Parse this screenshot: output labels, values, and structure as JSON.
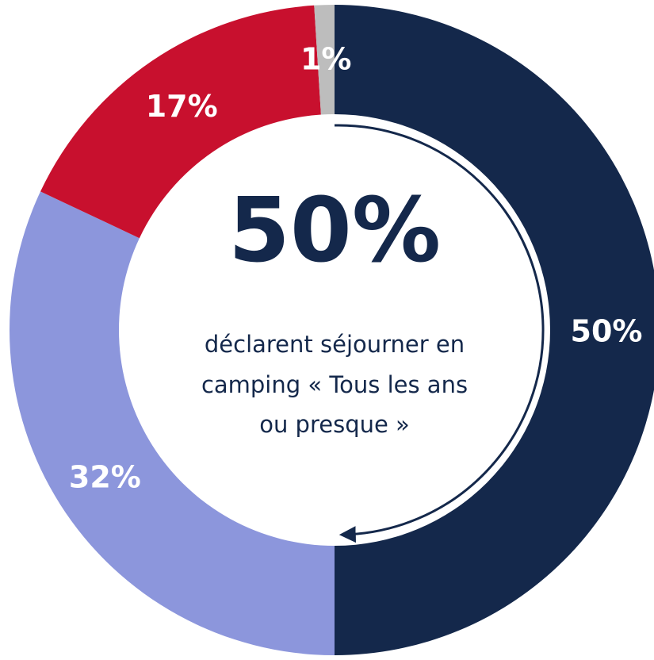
{
  "chart_data": {
    "type": "donut",
    "values": [
      50,
      32,
      17,
      1
    ],
    "value_labels": [
      "50%",
      "32%",
      "17%",
      "1%"
    ],
    "colors": [
      "#14284b",
      "#8c96dc",
      "#c8102e",
      "#bdbdbd"
    ],
    "center_label": "50%",
    "center_text": [
      "déclarent séjourner en",
      "camping « Tous les ans",
      "ou presque »"
    ]
  }
}
